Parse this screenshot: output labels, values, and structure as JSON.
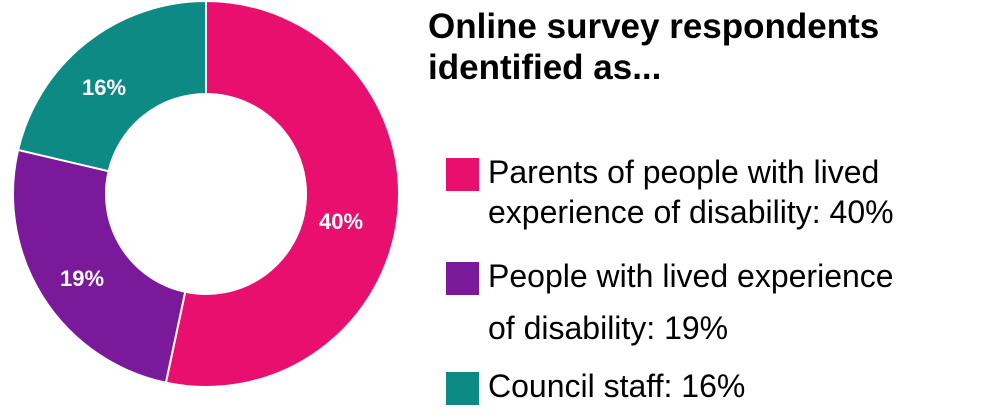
{
  "title": {
    "line1": "Online survey respondents",
    "line2": "identified as..."
  },
  "chart_data": {
    "type": "pie",
    "hole": "donut",
    "start_angle": "12 o'clock, clockwise",
    "slices": [
      {
        "label": "Parents of people with lived experience of disability",
        "value": 40,
        "display": "40%",
        "color": "#e90f6e"
      },
      {
        "label": "People with lived experience of disability",
        "value": 19,
        "display": "19%",
        "color": "#7a1a9a"
      },
      {
        "label": "Council staff",
        "value": 16,
        "display": "16%",
        "color": "#0d8a84"
      }
    ]
  },
  "legend": [
    {
      "line1": "Parents of people with lived",
      "line2": "experience of disability: 40%",
      "color": "#e90f6e"
    },
    {
      "line1": "People with lived experience",
      "line2": "of disability: 19%",
      "color": "#7a1a9a"
    },
    {
      "line1": "Council staff: 16%",
      "line2": "",
      "color": "#0d8a84"
    }
  ]
}
